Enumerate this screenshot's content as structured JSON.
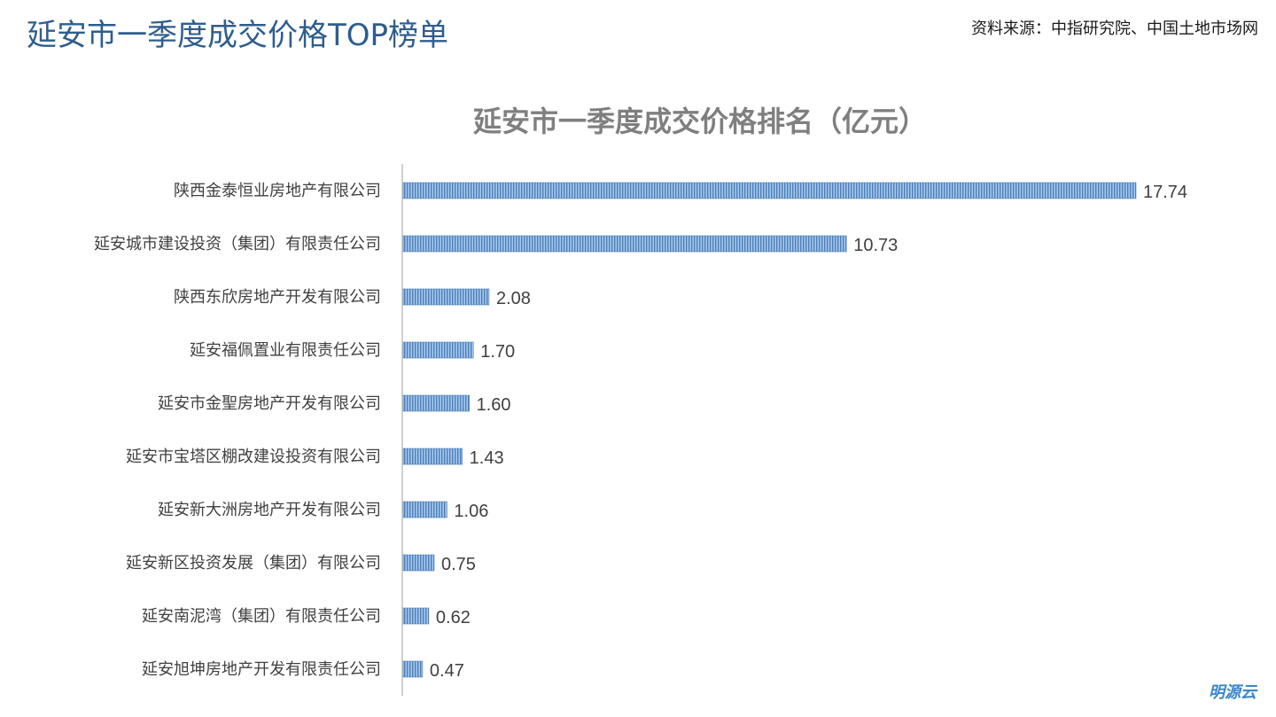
{
  "header": {
    "title": "延安市一季度成交价格TOP榜单",
    "source": "资料来源：中指研究院、中国土地市场网"
  },
  "brand": "明源云",
  "colors": {
    "bar_fill": "#a9c8e6",
    "bar_stripe": "#4a7fbf",
    "axis": "#bfbfbf",
    "label_text": "#404040"
  },
  "chart_data": {
    "type": "bar",
    "orientation": "horizontal",
    "title": "延安市一季度成交价格排名（亿元）",
    "categories": [
      "陕西金泰恒业房地产有限公司",
      "延安城市建设投资（集团）有限责任公司",
      "陕西东欣房地产开发有限公司",
      "延安福佩置业有限责任公司",
      "延安市金聖房地产开发有限公司",
      "延安市宝塔区棚改建设投资有限公司",
      "延安新大洲房地产开发有限公司",
      "延安新区投资发展（集团）有限公司",
      "延安南泥湾（集团）有限责任公司",
      "延安旭坤房地产开发有限责任公司"
    ],
    "values": [
      17.74,
      10.73,
      2.08,
      1.7,
      1.6,
      1.43,
      1.06,
      0.75,
      0.62,
      0.47
    ],
    "value_labels": [
      "17.74",
      "10.73",
      "2.08",
      "1.70",
      "1.60",
      "1.43",
      "1.06",
      "0.75",
      "0.62",
      "0.47"
    ],
    "xlim": [
      0,
      17.74
    ],
    "grid": false,
    "legend": "none"
  }
}
